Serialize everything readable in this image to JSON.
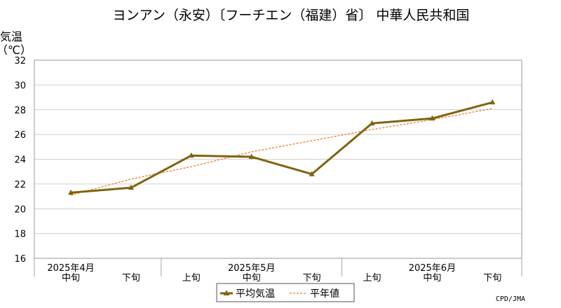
{
  "chart_data": {
    "type": "line",
    "title": "ヨンアン（永安）〔フーチエン（福建）省〕 中華人民共和国",
    "ylabel_line1": "気温",
    "ylabel_line2": "（℃）",
    "ylim": [
      16,
      32
    ],
    "yticks": [
      16,
      18,
      20,
      22,
      24,
      26,
      28,
      30,
      32
    ],
    "grid": true,
    "x": [
      "中旬",
      "下旬",
      "上旬",
      "中旬",
      "下旬",
      "上旬",
      "中旬",
      "下旬"
    ],
    "month_labels": [
      "2025年4月",
      "2025年5月",
      "2025年6月"
    ],
    "series": [
      {
        "name": "平均気温",
        "color": "#7f6410",
        "style": "solid-with-triangle-markers",
        "values": [
          21.3,
          21.7,
          24.3,
          24.2,
          22.8,
          26.9,
          27.3,
          28.6
        ]
      },
      {
        "name": "平年値",
        "color": "#e87d2c",
        "style": "dashed",
        "values": [
          21.1,
          22.4,
          23.4,
          24.6,
          25.5,
          26.4,
          27.2,
          28.1
        ]
      }
    ],
    "legend_position": "bottom-center",
    "credit": "CPD/JMA"
  }
}
